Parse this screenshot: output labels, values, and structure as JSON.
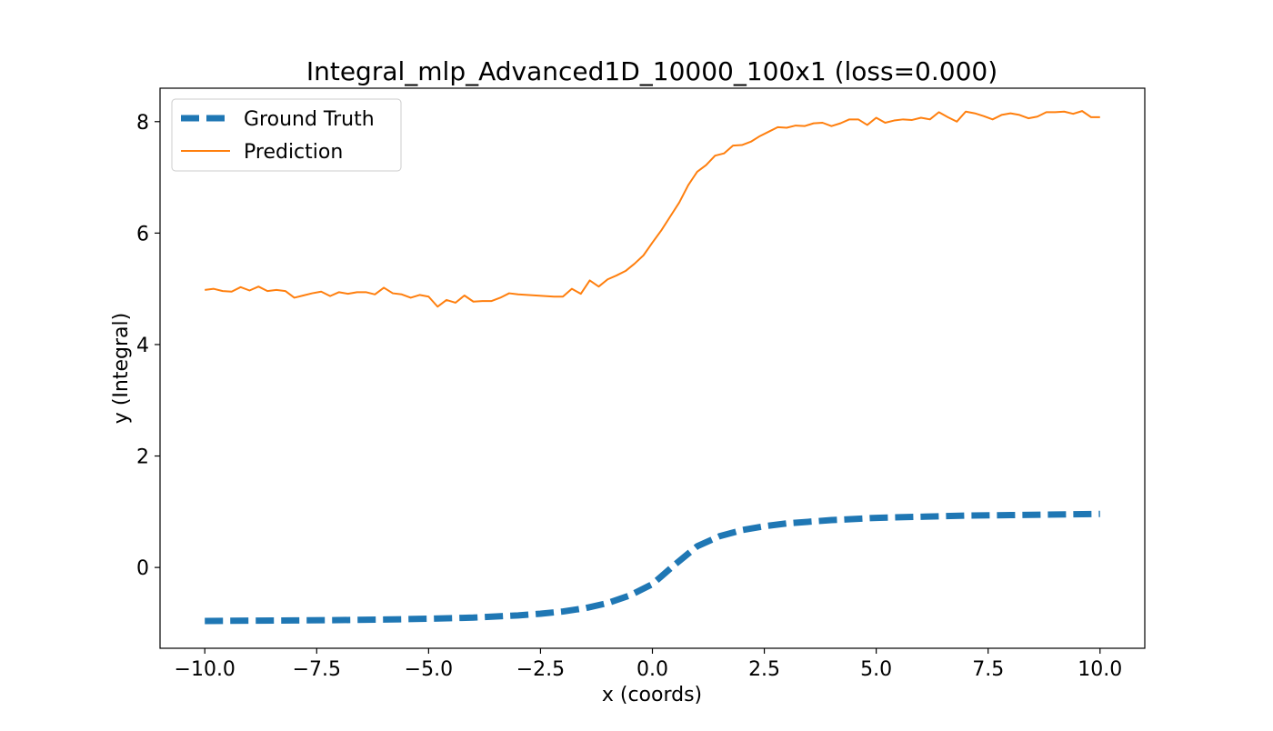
{
  "chart_data": {
    "type": "line",
    "title": "Integral_mlp_Advanced1D_10000_100x1 (loss=0.000)",
    "xlabel": "x (coords)",
    "ylabel": "y (Integral)",
    "xlim": [
      -11.0,
      11.0
    ],
    "ylim": [
      -1.45,
      8.6
    ],
    "xticks": [
      -10.0,
      -7.5,
      -5.0,
      -2.5,
      0.0,
      2.5,
      5.0,
      7.5,
      10.0
    ],
    "xtick_labels": [
      "−10.0",
      "−7.5",
      "−5.0",
      "−2.5",
      "0.0",
      "2.5",
      "5.0",
      "7.5",
      "10.0"
    ],
    "yticks": [
      0,
      2,
      4,
      6,
      8
    ],
    "ytick_labels": [
      "0",
      "2",
      "4",
      "6",
      "8"
    ],
    "grid": false,
    "legend_position": "top-left",
    "series": [
      {
        "name": "Ground Truth",
        "color": "#1f77b4",
        "style": "dashed",
        "x": [
          -10,
          -9,
          -8,
          -7,
          -6,
          -5,
          -4,
          -3,
          -2.5,
          -2,
          -1.5,
          -1,
          -0.5,
          0,
          0.5,
          1,
          1.5,
          2,
          2.5,
          3,
          4,
          5,
          6,
          7,
          8,
          9,
          10
        ],
        "y": [
          -0.96,
          -0.955,
          -0.95,
          -0.945,
          -0.935,
          -0.92,
          -0.9,
          -0.86,
          -0.83,
          -0.79,
          -0.73,
          -0.64,
          -0.5,
          -0.3,
          0.05,
          0.38,
          0.56,
          0.67,
          0.74,
          0.79,
          0.85,
          0.89,
          0.91,
          0.93,
          0.94,
          0.95,
          0.96
        ]
      },
      {
        "name": "Prediction",
        "color": "#ff7f0e",
        "style": "solid",
        "x": [
          -10,
          -9.8,
          -9.6,
          -9.4,
          -9.2,
          -9.0,
          -8.8,
          -8.6,
          -8.4,
          -8.2,
          -8.0,
          -7.8,
          -7.6,
          -7.4,
          -7.2,
          -7.0,
          -6.8,
          -6.6,
          -6.4,
          -6.2,
          -6.0,
          -5.8,
          -5.6,
          -5.4,
          -5.2,
          -5.0,
          -4.8,
          -4.6,
          -4.4,
          -4.2,
          -4.0,
          -3.8,
          -3.6,
          -3.4,
          -3.2,
          -3.0,
          -2.8,
          -2.6,
          -2.4,
          -2.2,
          -2.0,
          -1.8,
          -1.6,
          -1.4,
          -1.2,
          -1.0,
          -0.8,
          -0.6,
          -0.4,
          -0.2,
          0.0,
          0.2,
          0.4,
          0.6,
          0.8,
          1.0,
          1.2,
          1.4,
          1.6,
          1.8,
          2.0,
          2.2,
          2.4,
          2.6,
          2.8,
          3.0,
          3.2,
          3.4,
          3.6,
          3.8,
          4.0,
          4.2,
          4.4,
          4.6,
          4.8,
          5.0,
          5.2,
          5.4,
          5.6,
          5.8,
          6.0,
          6.2,
          6.4,
          6.6,
          6.8,
          7.0,
          7.2,
          7.4,
          7.6,
          7.8,
          8.0,
          8.2,
          8.4,
          8.6,
          8.8,
          9.0,
          9.2,
          9.4,
          9.6,
          9.8,
          10.0
        ],
        "y": [
          4.98,
          5.0,
          4.96,
          4.95,
          5.03,
          4.97,
          5.04,
          4.96,
          4.98,
          4.96,
          4.84,
          4.88,
          4.92,
          4.95,
          4.87,
          4.94,
          4.91,
          4.94,
          4.94,
          4.9,
          5.02,
          4.92,
          4.9,
          4.84,
          4.89,
          4.86,
          4.68,
          4.8,
          4.75,
          4.88,
          4.77,
          4.78,
          4.78,
          4.84,
          4.92,
          4.9,
          4.89,
          4.88,
          4.87,
          4.86,
          4.86,
          5.0,
          4.91,
          5.15,
          5.04,
          5.17,
          5.24,
          5.32,
          5.45,
          5.6,
          5.83,
          6.05,
          6.3,
          6.55,
          6.86,
          7.1,
          7.22,
          7.39,
          7.43,
          7.57,
          7.58,
          7.64,
          7.74,
          7.82,
          7.9,
          7.89,
          7.93,
          7.92,
          7.97,
          7.98,
          7.92,
          7.97,
          8.04,
          8.04,
          7.94,
          8.07,
          7.98,
          8.02,
          8.04,
          8.03,
          8.07,
          8.04,
          8.17,
          8.08,
          8.0,
          8.18,
          8.15,
          8.1,
          8.04,
          8.12,
          8.15,
          8.12,
          8.06,
          8.09,
          8.17,
          8.17,
          8.18,
          8.14,
          8.19,
          8.08,
          8.08
        ]
      }
    ]
  }
}
